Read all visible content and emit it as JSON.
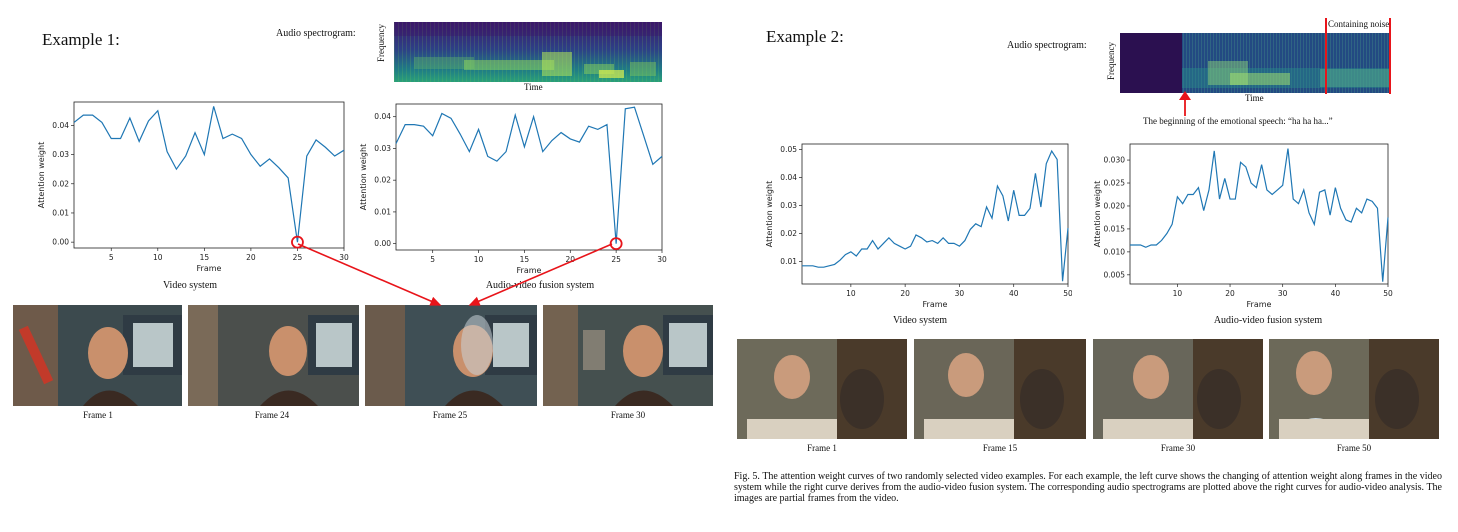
{
  "colors": {
    "line": "#1f77b4",
    "highlight": "#e8141a",
    "spectro_bg": "#2f0f5e",
    "spectro_mid": "#2a7b8e",
    "spectro_hi": "#9bd93c"
  },
  "example1": {
    "title": "Example 1:",
    "spectrogram_label": "Audio spectrogram:",
    "spectro_ylabel": "Frequency",
    "spectro_xlabel": "Time",
    "frames": [
      {
        "label": "Frame 1"
      },
      {
        "label": "Frame 24"
      },
      {
        "label": "Frame 25"
      },
      {
        "label": "Frame 30"
      }
    ]
  },
  "example2": {
    "title": "Example 2:",
    "spectrogram_label": "Audio spectrogram:",
    "spectro_ylabel": "Frequency",
    "spectro_xlabel": "Time",
    "noise_label": "Containing noise",
    "emotion_note": "The beginning of the emotional speech:  “ha ha ha...”",
    "frames": [
      {
        "label": "Frame 1"
      },
      {
        "label": "Frame 15"
      },
      {
        "label": "Frame 30"
      },
      {
        "label": "Frame 50"
      }
    ]
  },
  "figure_caption": "Fig. 5.  The attention weight curves of two randomly selected video examples. For each example, the left curve shows the changing of attention weight along frames in the video system while the right curve derives from the audio-video fusion system. The corresponding audio spectrograms are plotted above the right curves for audio-video analysis. The images are partial frames from the video.",
  "chart_data": [
    {
      "type": "line",
      "subtitle": "Video system",
      "xlabel": "Frame",
      "ylabel": "Attention weight",
      "x": [
        1,
        2,
        3,
        4,
        5,
        6,
        7,
        8,
        9,
        10,
        11,
        12,
        13,
        14,
        15,
        16,
        17,
        18,
        19,
        20,
        21,
        22,
        23,
        24,
        25,
        26,
        27,
        28,
        29,
        30
      ],
      "xlim": [
        1,
        30
      ],
      "ylim": [
        -0.002,
        0.048
      ],
      "xticks": [
        5,
        10,
        15,
        20,
        25,
        30
      ],
      "yticks": [
        0.0,
        0.01,
        0.02,
        0.03,
        0.04
      ],
      "ytick_labels": [
        "0.00",
        "0.01",
        "0.02",
        "0.03",
        "0.04"
      ],
      "marked_point": 25,
      "series": [
        {
          "values": [
            0.041,
            0.0435,
            0.0435,
            0.041,
            0.0355,
            0.0355,
            0.0425,
            0.0345,
            0.0415,
            0.045,
            0.031,
            0.025,
            0.0295,
            0.0375,
            0.03,
            0.0465,
            0.0355,
            0.037,
            0.0355,
            0.03,
            0.026,
            0.0285,
            0.0255,
            0.022,
            0.0,
            0.0295,
            0.035,
            0.0325,
            0.0295,
            0.0315
          ]
        }
      ]
    },
    {
      "type": "line",
      "subtitle": "Audio-video fusion system",
      "xlabel": "Frame",
      "ylabel": "Attention weight",
      "x": [
        1,
        2,
        3,
        4,
        5,
        6,
        7,
        8,
        9,
        10,
        11,
        12,
        13,
        14,
        15,
        16,
        17,
        18,
        19,
        20,
        21,
        22,
        23,
        24,
        25,
        26,
        27,
        28,
        29,
        30
      ],
      "xlim": [
        1,
        30
      ],
      "ylim": [
        -0.002,
        0.044
      ],
      "xticks": [
        5,
        10,
        15,
        20,
        25,
        30
      ],
      "yticks": [
        0.0,
        0.01,
        0.02,
        0.03,
        0.04
      ],
      "ytick_labels": [
        "0.00",
        "0.01",
        "0.02",
        "0.03",
        "0.04"
      ],
      "marked_point": 25,
      "series": [
        {
          "values": [
            0.0315,
            0.0375,
            0.0375,
            0.037,
            0.034,
            0.041,
            0.0395,
            0.0345,
            0.029,
            0.036,
            0.0275,
            0.026,
            0.029,
            0.0405,
            0.0305,
            0.04,
            0.029,
            0.0325,
            0.035,
            0.033,
            0.032,
            0.037,
            0.036,
            0.0375,
            0.0,
            0.0425,
            0.043,
            0.034,
            0.025,
            0.0275
          ]
        }
      ]
    },
    {
      "type": "line",
      "subtitle": "Video system",
      "xlabel": "Frame",
      "ylabel": "Attention weight",
      "x": [
        1,
        2,
        3,
        4,
        5,
        6,
        7,
        8,
        9,
        10,
        11,
        12,
        13,
        14,
        15,
        16,
        17,
        18,
        19,
        20,
        21,
        22,
        23,
        24,
        25,
        26,
        27,
        28,
        29,
        30,
        31,
        32,
        33,
        34,
        35,
        36,
        37,
        38,
        39,
        40,
        41,
        42,
        43,
        44,
        45,
        46,
        47,
        48,
        49,
        50
      ],
      "xlim": [
        1,
        50
      ],
      "ylim": [
        0.002,
        0.052
      ],
      "xticks": [
        10,
        20,
        30,
        40,
        50
      ],
      "yticks": [
        0.01,
        0.02,
        0.03,
        0.04,
        0.05
      ],
      "ytick_labels": [
        "0.01",
        "0.02",
        "0.03",
        "0.04",
        "0.05"
      ],
      "series": [
        {
          "values": [
            0.0085,
            0.0085,
            0.0085,
            0.008,
            0.008,
            0.0085,
            0.009,
            0.0105,
            0.0125,
            0.0135,
            0.012,
            0.0145,
            0.0145,
            0.0175,
            0.0145,
            0.0165,
            0.0185,
            0.0165,
            0.0155,
            0.0145,
            0.0155,
            0.0195,
            0.0185,
            0.017,
            0.0175,
            0.0165,
            0.0185,
            0.0165,
            0.0165,
            0.0155,
            0.0175,
            0.0215,
            0.0235,
            0.0225,
            0.0295,
            0.0255,
            0.037,
            0.0335,
            0.0245,
            0.0355,
            0.0265,
            0.0265,
            0.029,
            0.0415,
            0.0295,
            0.045,
            0.0495,
            0.0465,
            0.003,
            0.022
          ]
        }
      ]
    },
    {
      "type": "line",
      "subtitle": "Audio-video fusion system",
      "xlabel": "Frame",
      "ylabel": "Attention weight",
      "x": [
        1,
        2,
        3,
        4,
        5,
        6,
        7,
        8,
        9,
        10,
        11,
        12,
        13,
        14,
        15,
        16,
        17,
        18,
        19,
        20,
        21,
        22,
        23,
        24,
        25,
        26,
        27,
        28,
        29,
        30,
        31,
        32,
        33,
        34,
        35,
        36,
        37,
        38,
        39,
        40,
        41,
        42,
        43,
        44,
        45,
        46,
        47,
        48,
        49,
        50
      ],
      "xlim": [
        1,
        50
      ],
      "ylim": [
        0.003,
        0.0335
      ],
      "xticks": [
        10,
        20,
        30,
        40,
        50
      ],
      "yticks": [
        0.005,
        0.01,
        0.015,
        0.02,
        0.025,
        0.03
      ],
      "ytick_labels": [
        "0.005",
        "0.010",
        "0.015",
        "0.020",
        "0.025",
        "0.030"
      ],
      "series": [
        {
          "values": [
            0.0115,
            0.0115,
            0.0115,
            0.011,
            0.0115,
            0.0115,
            0.0125,
            0.014,
            0.016,
            0.022,
            0.0205,
            0.0225,
            0.0225,
            0.024,
            0.019,
            0.0235,
            0.032,
            0.0215,
            0.026,
            0.0215,
            0.0215,
            0.0295,
            0.0285,
            0.025,
            0.024,
            0.029,
            0.0235,
            0.0225,
            0.0235,
            0.0245,
            0.0325,
            0.0215,
            0.0205,
            0.0235,
            0.0185,
            0.016,
            0.023,
            0.0235,
            0.018,
            0.024,
            0.0195,
            0.017,
            0.0165,
            0.0195,
            0.0185,
            0.0215,
            0.021,
            0.0195,
            0.0035,
            0.0175
          ]
        }
      ]
    }
  ]
}
